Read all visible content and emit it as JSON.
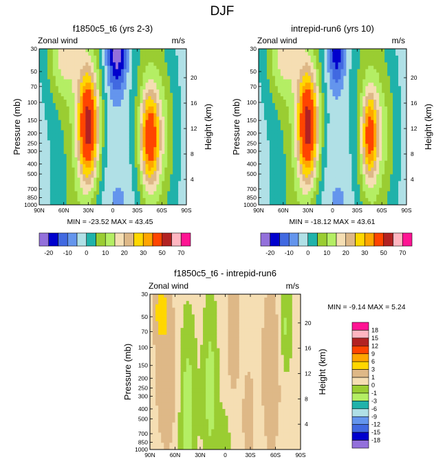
{
  "figure_title": "DJF",
  "palette": {
    "-20": "#9370db",
    "-15": "#0000cd",
    "-10": "#4169e1",
    "-5": "#6495ed",
    "0": "#b0e0e6",
    "5": "#20b2aa",
    "10": "#9acd32",
    "15": "#b4ee64",
    "20": "#f5deb3",
    "25": "#deb887",
    "30": "#ffd700",
    "35": "#ffa500",
    "40": "#ff4500",
    "50": "#b22222",
    "60": "#ffb6c1",
    "70": "#ff1493"
  },
  "chart_data": [
    {
      "type": "contour",
      "title": "f1850c5_t6 (yrs 2-3)",
      "left_label": "Zonal wind",
      "right_label": "m/s",
      "ylabel": "Pressure (mb)",
      "ylabel_right": "Height (km)",
      "x_ticks": [
        "90N",
        "60N",
        "30N",
        "0",
        "30S",
        "60S",
        "90S"
      ],
      "y_ticks": [
        "30",
        "50",
        "70",
        "100",
        "150",
        "200",
        "250",
        "300",
        "400",
        "500",
        "700",
        "850",
        "1000"
      ],
      "height_ticks": [
        "20",
        "16",
        "12",
        "8",
        "4"
      ],
      "min_label": "MIN = -23.52",
      "max_label": "MAX = 43.45",
      "x_range": [
        90,
        -90
      ],
      "y_range": [
        30,
        1000
      ],
      "jets": [
        {
          "lat": 30,
          "p": 170,
          "peak": 43.45,
          "lat_width": 9,
          "log_p_width": 0.38
        },
        {
          "lat": -45,
          "p": 220,
          "peak": 34,
          "lat_width": 8,
          "log_p_width": 0.32
        }
      ],
      "easterly_core": {
        "lat": -5,
        "p": 30,
        "peak": -23.5,
        "lat_width": 9,
        "log_p_width": 0.3
      },
      "colorbar": {
        "levels": [
          "-20",
          "-10",
          "0",
          "10",
          "20",
          "30",
          "50",
          "70"
        ],
        "tick_labels": [
          "-20",
          "-10",
          "0",
          "10",
          "20",
          "30",
          "50",
          "70"
        ]
      }
    },
    {
      "type": "contour",
      "title": "intrepid-run6 (yrs 10)",
      "left_label": "Zonal wind",
      "right_label": "m/s",
      "ylabel": "Pressure (mb)",
      "ylabel_right": "Height (km)",
      "x_ticks": [
        "90N",
        "60N",
        "30N",
        "0",
        "30S",
        "60S",
        "90S"
      ],
      "y_ticks": [
        "30",
        "50",
        "70",
        "100",
        "150",
        "200",
        "250",
        "300",
        "400",
        "500",
        "700",
        "850",
        "1000"
      ],
      "height_ticks": [
        "20",
        "16",
        "12",
        "8",
        "4"
      ],
      "min_label": "MIN = -18.12",
      "max_label": "MAX = 43.61",
      "x_range": [
        90,
        -90
      ],
      "y_range": [
        30,
        1000
      ],
      "jets": [
        {
          "lat": 30,
          "p": 170,
          "peak": 43.61,
          "lat_width": 9,
          "log_p_width": 0.38
        },
        {
          "lat": -45,
          "p": 210,
          "peak": 31,
          "lat_width": 7,
          "log_p_width": 0.3
        }
      ],
      "easterly_core": {
        "lat": -5,
        "p": 30,
        "peak": -18.1,
        "lat_width": 8,
        "log_p_width": 0.28
      },
      "colorbar": {
        "levels": [
          "-20",
          "-10",
          "0",
          "10",
          "20",
          "30",
          "50",
          "70"
        ],
        "tick_labels": [
          "-20",
          "-10",
          "0",
          "10",
          "20",
          "30",
          "50",
          "70"
        ]
      }
    },
    {
      "type": "contour",
      "title": "f1850c5_t6 - intrepid-run6",
      "left_label": "Zonal wind",
      "right_label": "m/s",
      "ylabel": "Pressure (mb)",
      "ylabel_right": "Height (km)",
      "x_ticks": [
        "90N",
        "60N",
        "30N",
        "0",
        "30S",
        "60S",
        "90S"
      ],
      "y_ticks": [
        "30",
        "50",
        "70",
        "100",
        "150",
        "200",
        "250",
        "300",
        "400",
        "500",
        "700",
        "850",
        "1000"
      ],
      "height_ticks": [
        "20",
        "16",
        "12",
        "8",
        "4"
      ],
      "min_label": "MIN =  -9.14",
      "max_label": "MAX =  5.24",
      "x_range": [
        90,
        -90
      ],
      "y_range": [
        30,
        1000
      ],
      "colorbar": {
        "levels": [
          "18",
          "15",
          "12",
          "9",
          "6",
          "3",
          "1",
          "0",
          "-1",
          "-3",
          "-6",
          "-9",
          "-12",
          "-15",
          "-18"
        ],
        "colors": [
          "#ff1493",
          "#ffb6c1",
          "#b22222",
          "#ff4500",
          "#ffa500",
          "#ffd700",
          "#deb887",
          "#f5deb3",
          "#9acd32",
          "#b4ee64",
          "#20b2aa",
          "#b0e0e6",
          "#6495ed",
          "#4169e1",
          "#0000cd",
          "#9370db"
        ],
        "shown_colors": [
          "#ff1493",
          "#ffb6c1",
          "#b22222",
          "#ff4500",
          "#ffa500",
          "#ffd700",
          "#deb887",
          "#f5deb3",
          "#9acd32",
          "#b4ee64",
          "#20b2aa",
          "#b0e0e6",
          "#6495ed",
          "#4169e1",
          "#0000cd",
          "#9370db"
        ]
      },
      "regions": [
        {
          "kind": "positive",
          "value": 3,
          "lat": 75,
          "p_top": 30,
          "p_bottom": 80
        },
        {
          "kind": "negative",
          "value": -1,
          "lat": 45,
          "p_top": 100,
          "p_bottom": 1000
        },
        {
          "kind": "negative",
          "value": -1,
          "lat": 20,
          "p_top": 50,
          "p_bottom": 1000
        },
        {
          "kind": "positive",
          "value": 1,
          "lat": -10,
          "p_top": 30,
          "p_bottom": 300
        },
        {
          "kind": "positive",
          "value": 1,
          "lat": -55,
          "p_top": 30,
          "p_bottom": 850
        }
      ]
    }
  ]
}
